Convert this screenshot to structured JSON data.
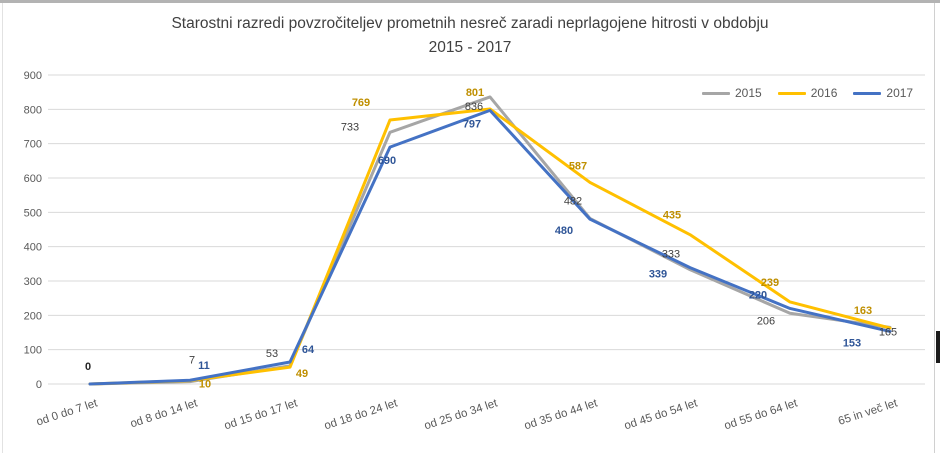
{
  "chart_data": {
    "type": "line",
    "title_lines": [
      "Starostni razredi povzročiteljev prometnih nesreč zaradi neprlagojene hitrosti v obdobju",
      "2015 - 2017"
    ],
    "categories": [
      "od 0 do 7 let",
      "od 8 do 14 let",
      "od 15 do 17 let",
      "od 18 do 24 let",
      "od 25 do 34 let",
      "od 35 do 44 let",
      "od 45 do 54 let",
      "od 55 do 64 let",
      "65 in več let"
    ],
    "series": [
      {
        "name": "2015",
        "color": "#A6A6A6",
        "label_color": "#404040",
        "values": [
          0,
          7,
          53,
          733,
          836,
          482,
          333,
          206,
          165
        ]
      },
      {
        "name": "2016",
        "color": "#FFC000",
        "label_color": "#BF8F00",
        "values": [
          0,
          10,
          49,
          769,
          801,
          587,
          435,
          239,
          163
        ]
      },
      {
        "name": "2017",
        "color": "#4472C4",
        "label_color": "#2F5597",
        "values": [
          0,
          11,
          64,
          690,
          797,
          480,
          339,
          220,
          153
        ]
      }
    ],
    "ylim": [
      0,
      900
    ],
    "yticks": [
      0,
      100,
      200,
      300,
      400,
      500,
      600,
      700,
      800,
      900
    ],
    "grid": true,
    "legend_position": "top-right",
    "axis_label_color": "#595959",
    "gridline_color": "#D9D9D9",
    "title_color": "#404040"
  }
}
